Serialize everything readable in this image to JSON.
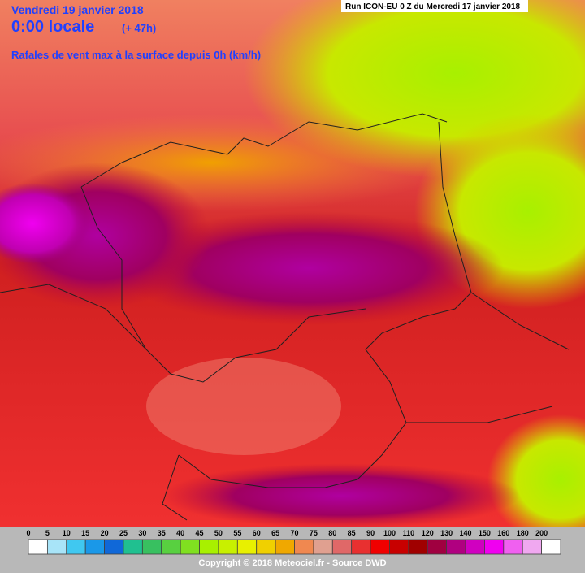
{
  "header": {
    "date": "Vendredi 19 janvier 2018",
    "time": "0:00 locale",
    "lead": "(+ 47h)",
    "parameter": "Rafales de vent max à la surface depuis 0h (km/h)",
    "run": "Run ICON-EU 0 Z du Mercredi 17 janvier 2018"
  },
  "legend": {
    "items": [
      {
        "label": 0,
        "color": "#ffffff"
      },
      {
        "label": 5,
        "color": "#a8e4f8"
      },
      {
        "label": 10,
        "color": "#40c8f0"
      },
      {
        "label": 15,
        "color": "#1a98e8"
      },
      {
        "label": 20,
        "color": "#1068d8"
      },
      {
        "label": 25,
        "color": "#20c090"
      },
      {
        "label": 30,
        "color": "#38c060"
      },
      {
        "label": 35,
        "color": "#58d040"
      },
      {
        "label": 40,
        "color": "#80e020"
      },
      {
        "label": 45,
        "color": "#a8f000"
      },
      {
        "label": 50,
        "color": "#c8f000"
      },
      {
        "label": 55,
        "color": "#e8f000"
      },
      {
        "label": 60,
        "color": "#f0d000"
      },
      {
        "label": 65,
        "color": "#f0a800"
      },
      {
        "label": 70,
        "color": "#f08850"
      },
      {
        "label": 75,
        "color": "#e0a090"
      },
      {
        "label": 80,
        "color": "#e06868"
      },
      {
        "label": 85,
        "color": "#e83030"
      },
      {
        "label": 90,
        "color": "#f00000"
      },
      {
        "label": 100,
        "color": "#c80000"
      },
      {
        "label": 110,
        "color": "#a00000"
      },
      {
        "label": 120,
        "color": "#a00040"
      },
      {
        "label": 130,
        "color": "#b00080"
      },
      {
        "label": 140,
        "color": "#d000c0"
      },
      {
        "label": 150,
        "color": "#f000f0"
      },
      {
        "label": 160,
        "color": "#f060f0"
      },
      {
        "label": 180,
        "color": "#f0a8f0"
      },
      {
        "label": 200,
        "color": "#ffffff"
      }
    ]
  },
  "footer": {
    "copyright": "Copyright © 2018 Meteociel.fr - Source DWD"
  }
}
